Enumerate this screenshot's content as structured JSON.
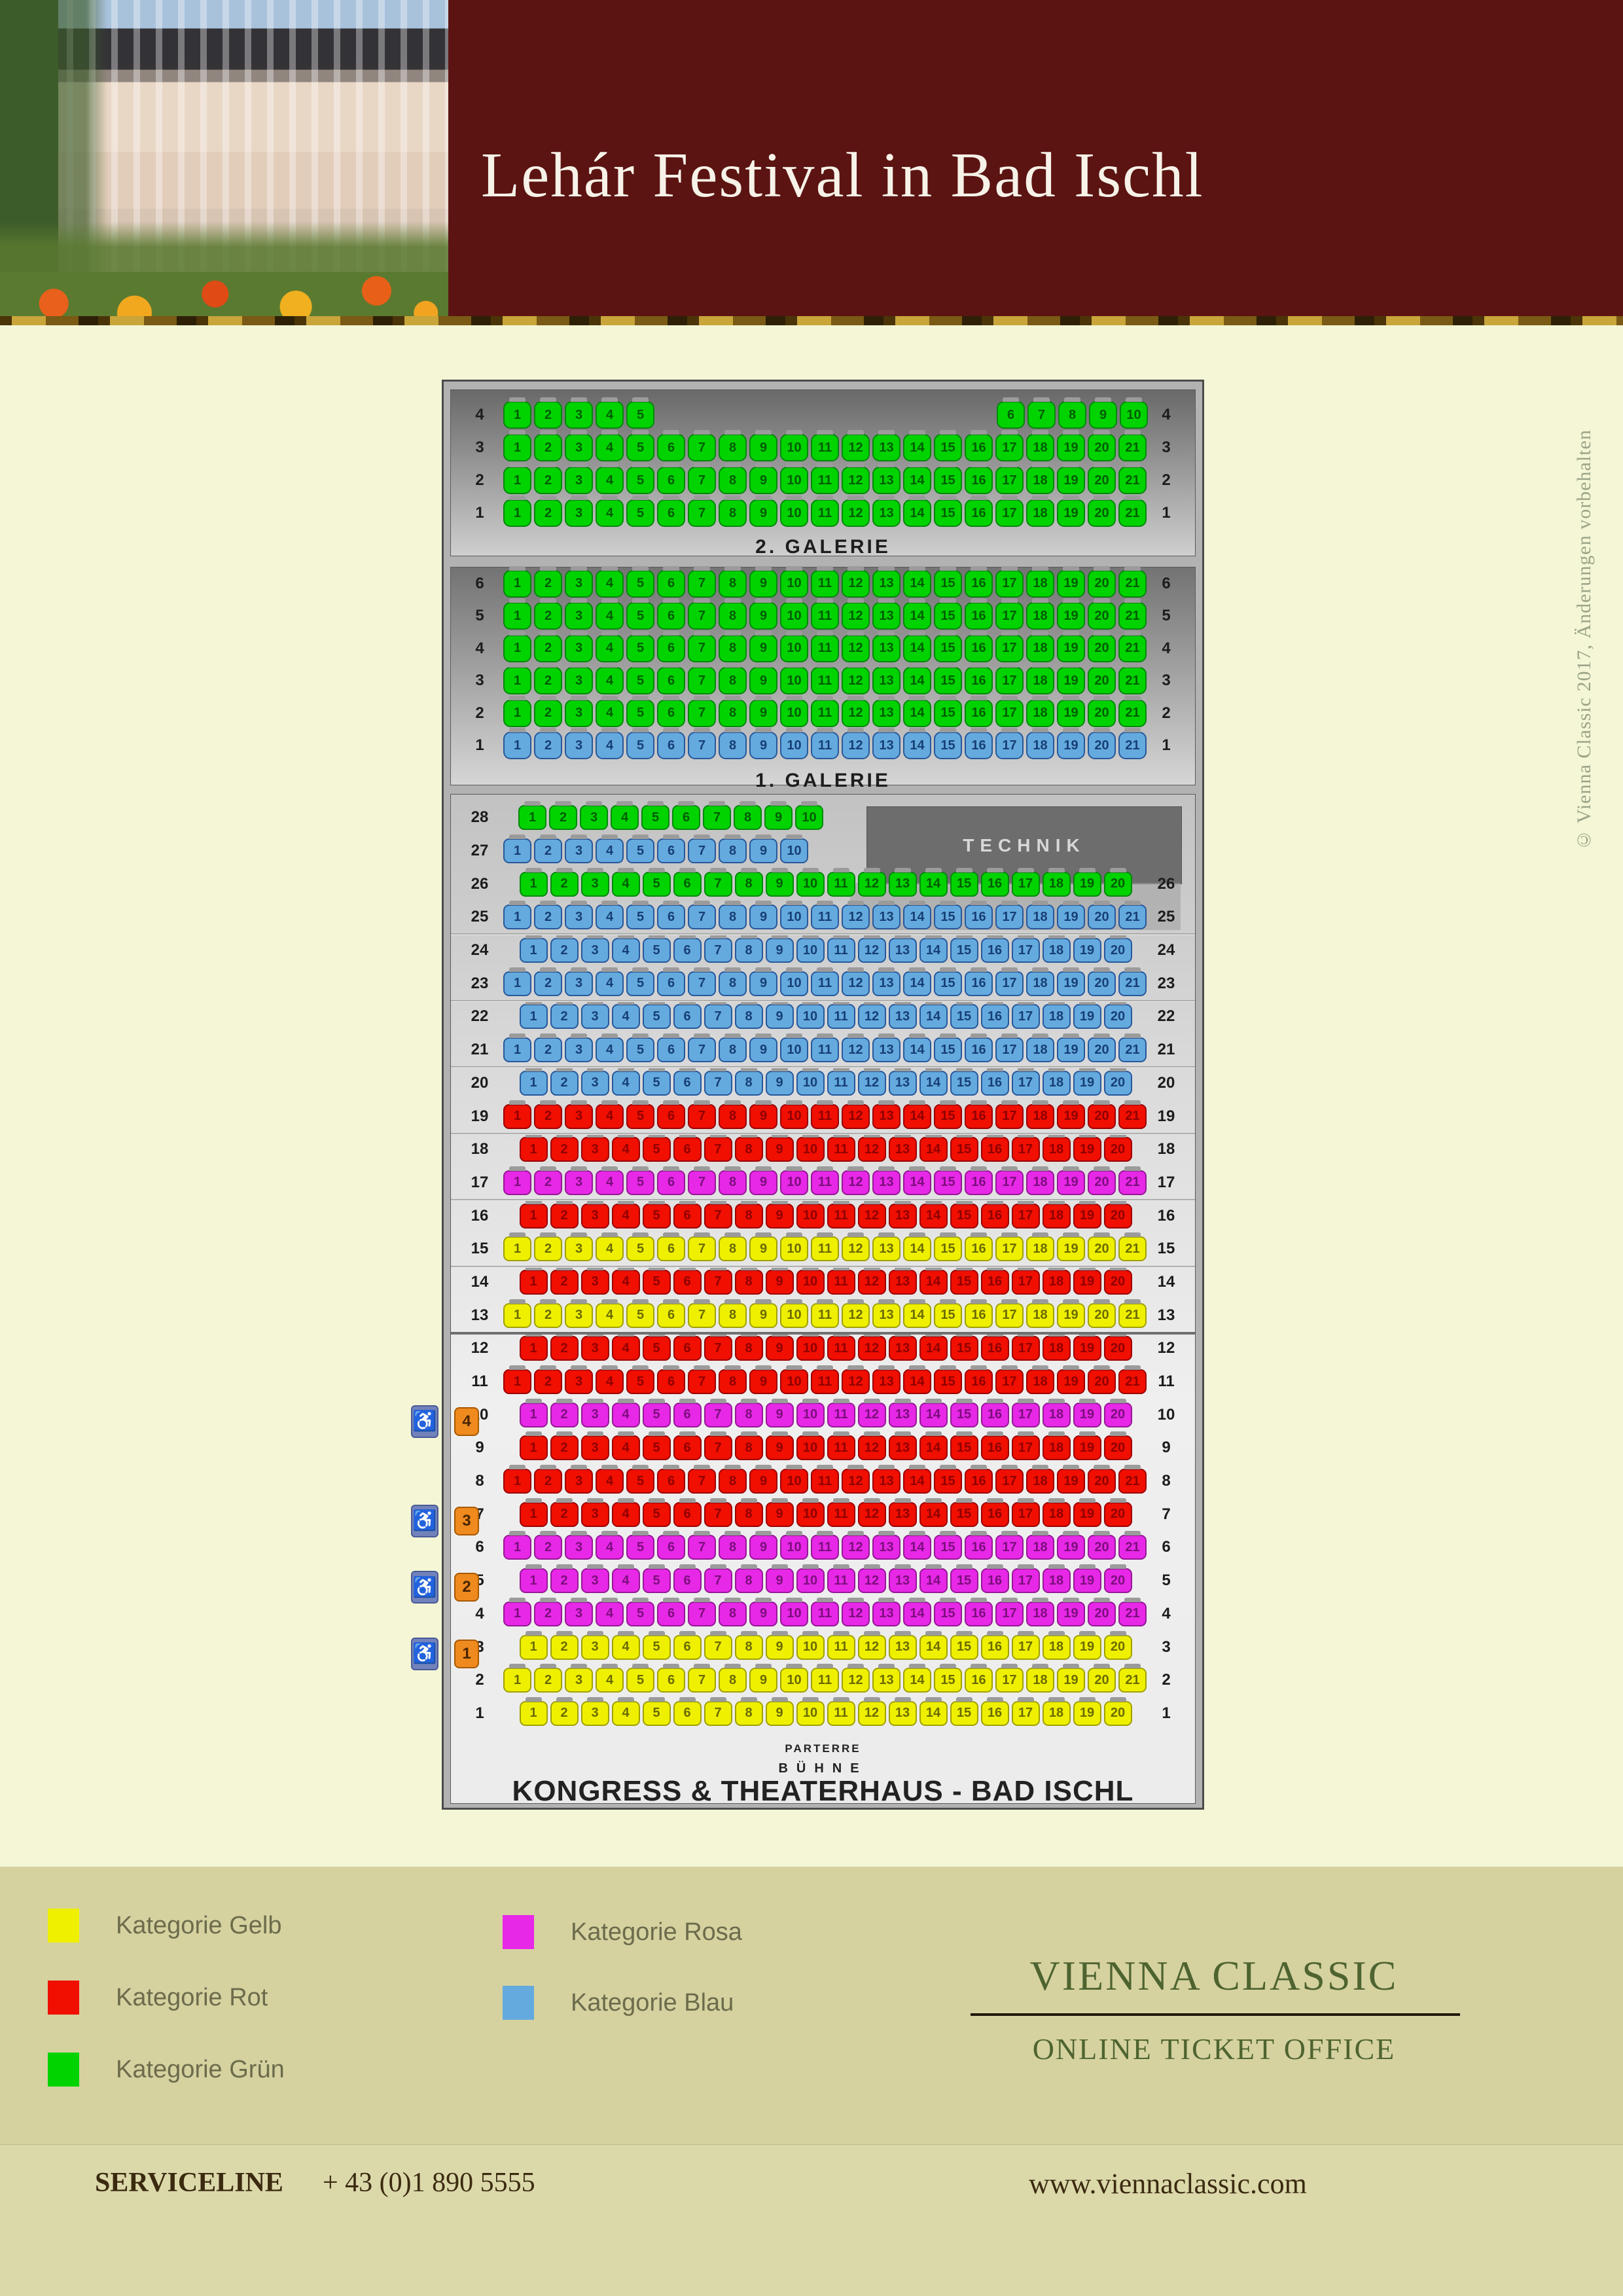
{
  "header": {
    "title": "Lehár Festival in Bad Ischl"
  },
  "copyright": "© Vienna Classic 2017, Änderungen vorbehalten",
  "categories": {
    "gelb": {
      "label": "Kategorie Gelb",
      "seat": "#eff000",
      "border": "#a0a000",
      "text": "#6b6b00"
    },
    "rot": {
      "label": "Kategorie Rot",
      "seat": "#f00f00",
      "border": "#9c0000",
      "text": "#8f0000"
    },
    "gruen": {
      "label": "Kategorie Grün",
      "seat": "#00d300",
      "border": "#00880a",
      "text": "#005c00"
    },
    "rosa": {
      "label": "Kategorie Rosa",
      "seat": "#e728e7",
      "border": "#951895",
      "text": "#7c0e7c"
    },
    "blau": {
      "label": "Kategorie Blau",
      "seat": "#64aade",
      "border": "#27589b",
      "text": "#173f75"
    }
  },
  "legend": {
    "left": [
      "gelb",
      "rot",
      "gruen"
    ],
    "right": [
      "rosa",
      "blau"
    ]
  },
  "seatmap": {
    "technik_label": "TECHNIK",
    "parterre_label": "PARTERRE",
    "stage_label": "BÜHNE",
    "venue_name": "KONGRESS & THEATERHAUS - BAD ISCHL",
    "galerie2": {
      "label": "2. GALERIE",
      "rows": [
        {
          "label": "4",
          "cat": "gruen",
          "segments": [
            [
              1,
              5
            ],
            [
              6,
              10
            ]
          ]
        },
        {
          "label": "3",
          "cat": "gruen",
          "segments": [
            [
              1,
              21
            ]
          ]
        },
        {
          "label": "2",
          "cat": "gruen",
          "segments": [
            [
              1,
              21
            ]
          ]
        },
        {
          "label": "1",
          "cat": "gruen",
          "segments": [
            [
              1,
              21
            ]
          ]
        }
      ]
    },
    "galerie1": {
      "label": "1. GALERIE",
      "rows": [
        {
          "label": "6",
          "cat": "gruen",
          "segments": [
            [
              1,
              21
            ]
          ]
        },
        {
          "label": "5",
          "cat": "gruen",
          "segments": [
            [
              1,
              21
            ]
          ]
        },
        {
          "label": "4",
          "cat": "gruen",
          "segments": [
            [
              1,
              21
            ]
          ]
        },
        {
          "label": "3",
          "cat": "gruen",
          "segments": [
            [
              1,
              21
            ]
          ]
        },
        {
          "label": "2",
          "cat": "gruen",
          "segments": [
            [
              1,
              21
            ]
          ]
        },
        {
          "label": "1",
          "cat": "blau",
          "segments": [
            [
              1,
              21
            ]
          ]
        }
      ]
    },
    "parterre": {
      "rows": [
        {
          "label": "28",
          "cat": "gruen",
          "segments": [
            [
              1,
              10
            ]
          ],
          "align": "left",
          "indent": true,
          "right_label": false
        },
        {
          "label": "27",
          "cat": "blau",
          "segments": [
            [
              1,
              10
            ]
          ],
          "align": "left",
          "right_label": false
        },
        {
          "label": "26",
          "cat": "gruen",
          "segments": [
            [
              1,
              20
            ]
          ]
        },
        {
          "label": "25",
          "cat": "blau",
          "segments": [
            [
              1,
              21
            ]
          ]
        },
        {
          "label": "24",
          "cat": "blau",
          "segments": [
            [
              1,
              20
            ]
          ]
        },
        {
          "label": "23",
          "cat": "blau",
          "segments": [
            [
              1,
              21
            ]
          ]
        },
        {
          "label": "22",
          "cat": "blau",
          "segments": [
            [
              1,
              20
            ]
          ]
        },
        {
          "label": "21",
          "cat": "blau",
          "segments": [
            [
              1,
              21
            ]
          ]
        },
        {
          "label": "20",
          "cat": "blau",
          "segments": [
            [
              1,
              20
            ]
          ]
        },
        {
          "label": "19",
          "cat": "rot",
          "segments": [
            [
              1,
              21
            ]
          ]
        },
        {
          "label": "18",
          "cat": "rot",
          "segments": [
            [
              1,
              20
            ]
          ]
        },
        {
          "label": "17",
          "cat": "rosa",
          "segments": [
            [
              1,
              21
            ]
          ]
        },
        {
          "label": "16",
          "cat": "rot",
          "segments": [
            [
              1,
              20
            ]
          ]
        },
        {
          "label": "15",
          "cat": "gelb",
          "segments": [
            [
              1,
              21
            ]
          ]
        },
        {
          "label": "14",
          "cat": "rot",
          "segments": [
            [
              1,
              20
            ]
          ]
        },
        {
          "label": "13",
          "cat": "gelb",
          "segments": [
            [
              1,
              21
            ]
          ]
        },
        {
          "label": "12",
          "cat": "rot",
          "segments": [
            [
              1,
              20
            ]
          ]
        },
        {
          "label": "11",
          "cat": "rot",
          "segments": [
            [
              1,
              21
            ]
          ]
        },
        {
          "label": "10",
          "cat": "rosa",
          "segments": [
            [
              1,
              20
            ]
          ]
        },
        {
          "label": "9",
          "cat": "rot",
          "segments": [
            [
              1,
              20
            ]
          ]
        },
        {
          "label": "8",
          "cat": "rot",
          "segments": [
            [
              1,
              21
            ]
          ]
        },
        {
          "label": "7",
          "cat": "rot",
          "segments": [
            [
              1,
              20
            ]
          ]
        },
        {
          "label": "6",
          "cat": "rosa",
          "segments": [
            [
              1,
              21
            ]
          ]
        },
        {
          "label": "5",
          "cat": "rosa",
          "segments": [
            [
              1,
              20
            ]
          ]
        },
        {
          "label": "4",
          "cat": "rosa",
          "segments": [
            [
              1,
              21
            ]
          ]
        },
        {
          "label": "3",
          "cat": "gelb",
          "segments": [
            [
              1,
              20
            ]
          ]
        },
        {
          "label": "2",
          "cat": "gelb",
          "segments": [
            [
              1,
              21
            ]
          ]
        },
        {
          "label": "1",
          "cat": "gelb",
          "segments": [
            [
              1,
              20
            ]
          ]
        }
      ]
    }
  },
  "accessibility": [
    {
      "tag": "4",
      "row": 10
    },
    {
      "tag": "3",
      "row": 7
    },
    {
      "tag": "2",
      "row": 5
    },
    {
      "tag": "1",
      "row": 3
    }
  ],
  "footer": {
    "brand": "VIENNA CLASSIC",
    "subtitle": "ONLINE TICKET OFFICE",
    "serviceline_label": "SERVICELINE",
    "phone": "+ 43 (0)1 890 5555",
    "website": "www.viennaclassic.com"
  }
}
